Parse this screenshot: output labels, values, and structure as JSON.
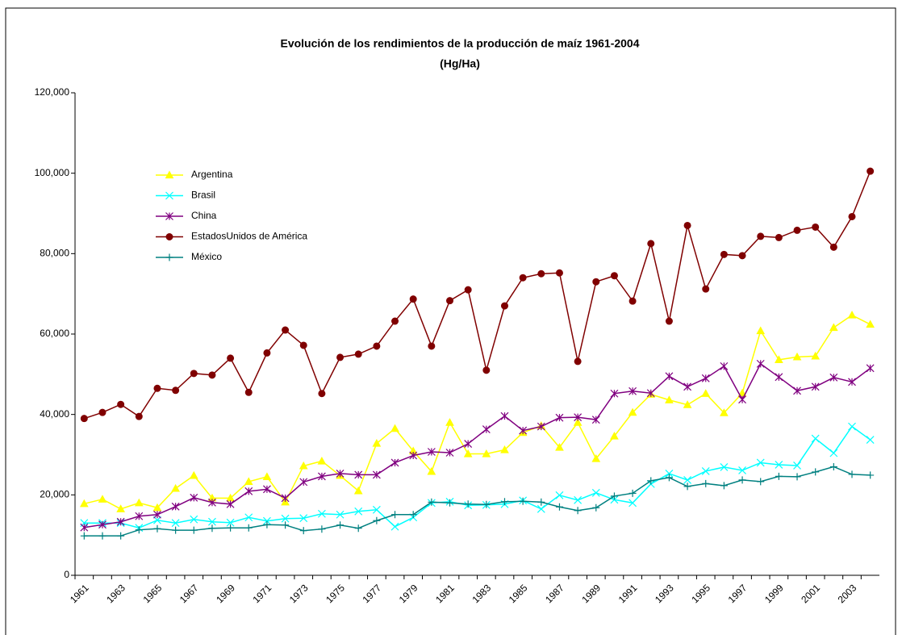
{
  "chart_data": {
    "type": "line",
    "title": "Evolución de los rendimientos de la producción de maíz 1961-2004",
    "subtitle": "(Hg/Ha)",
    "categories": [
      "1961",
      null,
      "1963",
      null,
      "1965",
      null,
      "1967",
      null,
      "1969",
      null,
      "1971",
      null,
      "1973",
      null,
      "1975",
      null,
      "1977",
      null,
      "1979",
      null,
      "1981",
      null,
      "1983",
      null,
      "1985",
      null,
      "1987",
      null,
      "1989",
      null,
      "1991",
      null,
      "1993",
      null,
      "1995",
      null,
      "1997",
      null,
      "1999",
      null,
      "2001",
      null,
      "2003",
      null
    ],
    "ylim": [
      0,
      120000
    ],
    "yticks": [
      0,
      {
        "value": 20000,
        "label": "20,000"
      },
      {
        "value": 40000,
        "label": "40,000"
      },
      {
        "value": 60000,
        "label": "60,000"
      },
      {
        "value": 80000,
        "label": "80,000"
      },
      {
        "value": 100000,
        "label": "100,000"
      },
      {
        "value": 120000,
        "label": "120,000"
      }
    ],
    "grid": false,
    "legend": "upper left",
    "series": [
      {
        "name": "Argentina",
        "color": "#ffff00",
        "marker": "triangle",
        "values": [
          17800,
          18900,
          16500,
          18000,
          16800,
          21600,
          24800,
          19200,
          19200,
          23300,
          24500,
          18200,
          27200,
          28400,
          24800,
          21000,
          32800,
          36500,
          30900,
          25800,
          38000,
          30200,
          30200,
          31200,
          35500,
          37200,
          31800,
          38000,
          29000,
          34600,
          40500,
          45000,
          43600,
          42400,
          45200,
          40400,
          45300,
          60800,
          53600,
          54300,
          54500,
          61600,
          64700,
          62400
        ]
      },
      {
        "name": "Brasil",
        "color": "#00ffff",
        "marker": "x",
        "values": [
          13000,
          13000,
          13000,
          11800,
          13700,
          13000,
          13900,
          13300,
          13100,
          14400,
          13500,
          14100,
          14200,
          15300,
          15100,
          15900,
          16300,
          12100,
          14400,
          18000,
          18300,
          17400,
          17500,
          17700,
          18600,
          16500,
          19900,
          18700,
          20500,
          18800,
          18000,
          22700,
          25300,
          23700,
          25900,
          26900,
          26100,
          28000,
          27500,
          27300,
          34000,
          30400,
          37000,
          33700
        ]
      },
      {
        "name": "China",
        "color": "#800080",
        "marker": "asterisk",
        "values": [
          11900,
          12600,
          13300,
          14700,
          15100,
          17100,
          19300,
          18100,
          17700,
          20900,
          21400,
          19200,
          23200,
          24600,
          25300,
          25000,
          25000,
          28000,
          29800,
          30700,
          30500,
          32700,
          36300,
          39600,
          36000,
          37000,
          39200,
          39300,
          38700,
          45200,
          45800,
          45300,
          49500,
          46900,
          49000,
          52000,
          43700,
          52600,
          49300,
          45900,
          46900,
          49200,
          48100,
          51500
        ]
      },
      {
        "name": "EstadosUnidos de América",
        "color": "#800000",
        "marker": "circle",
        "values": [
          39000,
          40500,
          42500,
          39500,
          46500,
          46000,
          50200,
          49800,
          54000,
          45500,
          55300,
          61000,
          57200,
          45200,
          54200,
          55000,
          57000,
          63200,
          68700,
          57000,
          68300,
          71000,
          51000,
          67000,
          74000,
          75000,
          75200,
          53200,
          73000,
          74500,
          68200,
          82500,
          63200,
          87000,
          71200,
          79800,
          79500,
          84300,
          84000,
          85800,
          86600,
          81600,
          89200,
          100500
        ]
      },
      {
        "name": "México",
        "color": "#008080",
        "marker": "plus",
        "values": [
          9800,
          9800,
          9800,
          11300,
          11600,
          11200,
          11200,
          11700,
          11800,
          11800,
          12600,
          12500,
          11100,
          11500,
          12500,
          11700,
          13600,
          15100,
          15100,
          18200,
          18000,
          17700,
          17600,
          18300,
          18400,
          18200,
          17000,
          16100,
          16800,
          19700,
          20400,
          23500,
          24300,
          22100,
          22800,
          22300,
          23700,
          23300,
          24600,
          24500,
          25700,
          27000,
          25100,
          24900
        ]
      }
    ]
  }
}
